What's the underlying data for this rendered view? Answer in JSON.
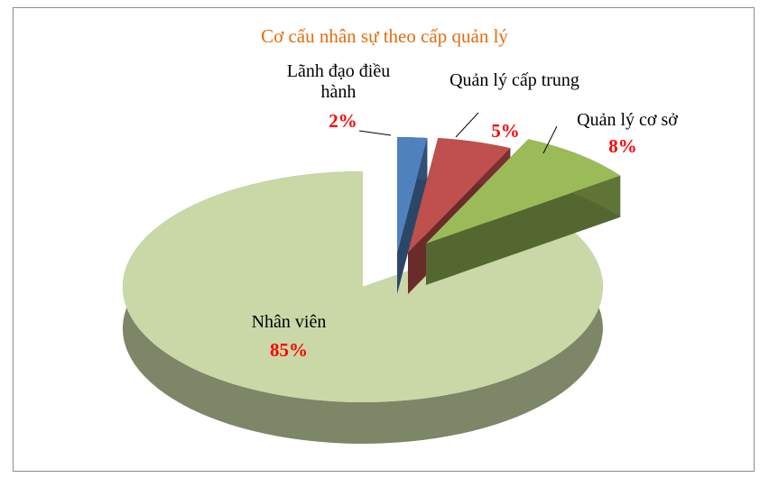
{
  "chart_data": {
    "type": "pie",
    "title": "Cơ cấu nhân sự theo cấp quản lý",
    "categories": [
      "Lãnh đạo điều hành",
      "Quản lý cấp trung",
      "Quản lý cơ sở",
      "Nhân viên"
    ],
    "values": [
      2,
      5,
      8,
      85
    ],
    "value_labels": [
      "2%",
      "5%",
      "8%",
      "85%"
    ],
    "colors": [
      "#4f81bd",
      "#c0504d",
      "#9bbb59",
      "#c9d8a6"
    ]
  }
}
